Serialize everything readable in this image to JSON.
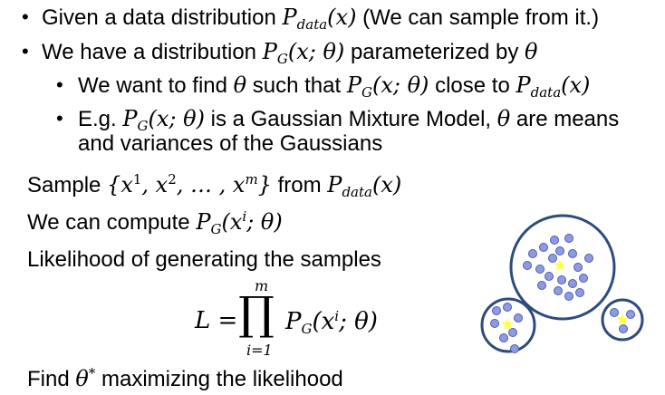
{
  "bullets": [
    {
      "lead": "Given a data distribution ",
      "math": "P",
      "sub": "data",
      "arg": "(x)",
      "tail": " (We can sample from it.)"
    },
    {
      "lead": "We have a distribution ",
      "math": "P",
      "sub": "G",
      "arg": "(x; θ)",
      "mid": " parameterized by ",
      "math2": "θ"
    },
    {
      "lead": "We want to find ",
      "math": "θ",
      "mid": " such that ",
      "math2": "P",
      "sub2": "G",
      "arg2": "(x; θ)",
      "mid2": " close to ",
      "math3": "P",
      "sub3": "data",
      "arg3": "(x)"
    },
    {
      "lead": "E.g. ",
      "math": "P",
      "sub": "G",
      "arg": "(x; θ)",
      "mid": " is a Gaussian Mixture Model, ",
      "math2": "θ",
      "mid2": " are means",
      "line2": "and variances of the Gaussians"
    }
  ],
  "body": {
    "sample": {
      "lead": "Sample ",
      "math": "{x",
      "sup1": "1",
      "mid1": ", x",
      "sup2": "2",
      "mid2": ", … , x",
      "sup3": "m",
      "close": "}",
      "mid": " from ",
      "p": "P",
      "sub": "data",
      "arg": "(x)"
    },
    "compute": {
      "lead": "We can compute ",
      "p": "P",
      "sub": "G",
      "arg_open": "(x",
      "sup": "i",
      "arg_close": "; θ)"
    },
    "likelihood": "Likelihood of generating the samples",
    "formula": {
      "lhs": "L =",
      "product": "∏",
      "upper": "m",
      "lower": "i=1",
      "p": "P",
      "sub": "G",
      "arg_open": "(x",
      "sup": "i",
      "arg_close": "; θ)"
    },
    "find": {
      "lead": "Find ",
      "math": "θ",
      "sup": "*",
      "tail": " maximizing the likelihood"
    }
  },
  "diagram_colors": {
    "circle_stroke": "#2f4b7c",
    "dot_fill": "#8f9be0",
    "dot_stroke": "#4e5bb3",
    "star": "#ffff44"
  }
}
